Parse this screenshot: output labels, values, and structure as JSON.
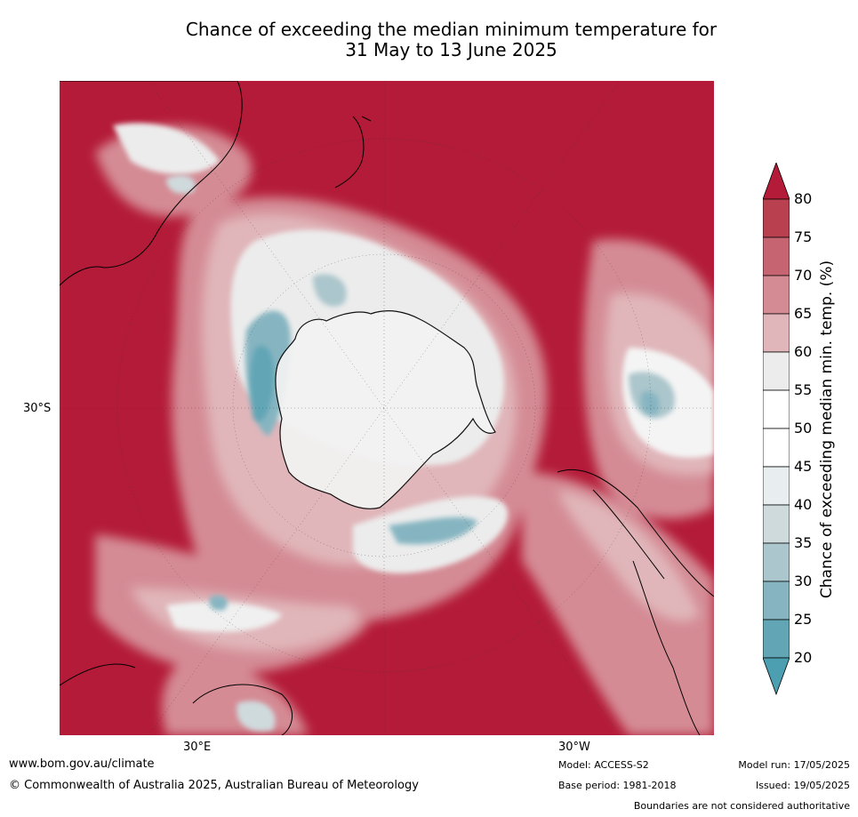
{
  "title_line1": "Chance of exceeding the median minimum temperature for",
  "title_line2": "31 May to 13 June 2025",
  "axis_labels": {
    "lat": "30°S",
    "lon_east": "30°E",
    "lon_west": "30°W"
  },
  "colorbar": {
    "label": "Chance of exceeding median min. temp. (%)",
    "ticks": [
      "80",
      "75",
      "70",
      "65",
      "60",
      "55",
      "50",
      "45",
      "40",
      "35",
      "30",
      "25",
      "20"
    ],
    "colors": {
      "over": "#b41b38",
      "bands": [
        "#b9404e",
        "#c66571",
        "#d48b94",
        "#e0b6ba",
        "#ececec",
        "#ffffff",
        "#ffffff",
        "#e8edef",
        "#cfdadd",
        "#abc6cc",
        "#86b5c1",
        "#62a6b6"
      ],
      "under": "#4b9fb1"
    }
  },
  "footer": {
    "url": "www.bom.gov.au/climate",
    "copyright": "© Commonwealth of Australia 2025, Australian Bureau of Meteorology",
    "model": "Model: ACCESS-S2",
    "base_period": "Base period: 1981-2018",
    "model_run": "Model run: 17/05/2025",
    "issued": "Issued: 19/05/2025",
    "disclaimer": "Boundaries are not considered authoritative"
  }
}
